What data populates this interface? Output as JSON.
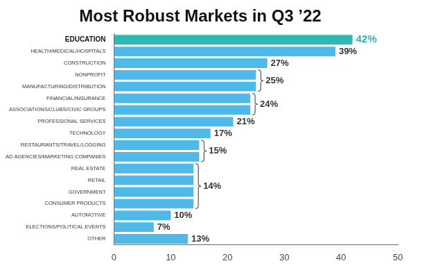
{
  "chart_data": {
    "type": "bar",
    "orientation": "horizontal",
    "title": "Most Robust Markets in Q3 ’22",
    "categories": [
      "EDUCATION",
      "HEALTH/MEDICAL/HOSPITALS",
      "CONSTRUCTION",
      "NONPROFIT",
      "MANUFACTURING/DISTRIBUTION",
      "FINANCIAL/INSURANCE",
      "ASSOCIATIONS/CLUBS/CIVIC GROUPS",
      "PROFESSIONAL SERVICES",
      "TECHNOLOGY",
      "RESTAURANTS/TRAVEL/LODGING",
      "AD AGENCIES/MARKETING COMPANIES",
      "REAL ESTATE",
      "RETAIL",
      "GOVERNMENT",
      "CONSUMER PRODUCTS",
      "AUTOMOTIVE",
      "ELECTIONS/POLITICAL EVENTS",
      "OTHER"
    ],
    "values": [
      42,
      39,
      27,
      25,
      25,
      24,
      24,
      21,
      17,
      15,
      15,
      14,
      14,
      14,
      14,
      10,
      7,
      13
    ],
    "value_labels": [
      "42%",
      "39%",
      "27%",
      "25%",
      null,
      "24%",
      null,
      "21%",
      "17%",
      "15%",
      null,
      "14%",
      null,
      null,
      null,
      "10%",
      "7%",
      "13%"
    ],
    "colors": [
      "#2fb8b4",
      "#4fb9ea",
      "#4fb9ea",
      "#4fb9ea",
      "#4fb9ea",
      "#4fb9ea",
      "#4fb9ea",
      "#4fb9ea",
      "#4fb9ea",
      "#4fb9ea",
      "#4fb9ea",
      "#4fb9ea",
      "#4fb9ea",
      "#4fb9ea",
      "#4fb9ea",
      "#4fb9ea",
      "#4fb9ea",
      "#4fb9ea"
    ],
    "xlim": [
      0,
      50
    ],
    "xticks": [
      0,
      10,
      20,
      30,
      40,
      50
    ],
    "grid": false,
    "data_labels": true
  }
}
